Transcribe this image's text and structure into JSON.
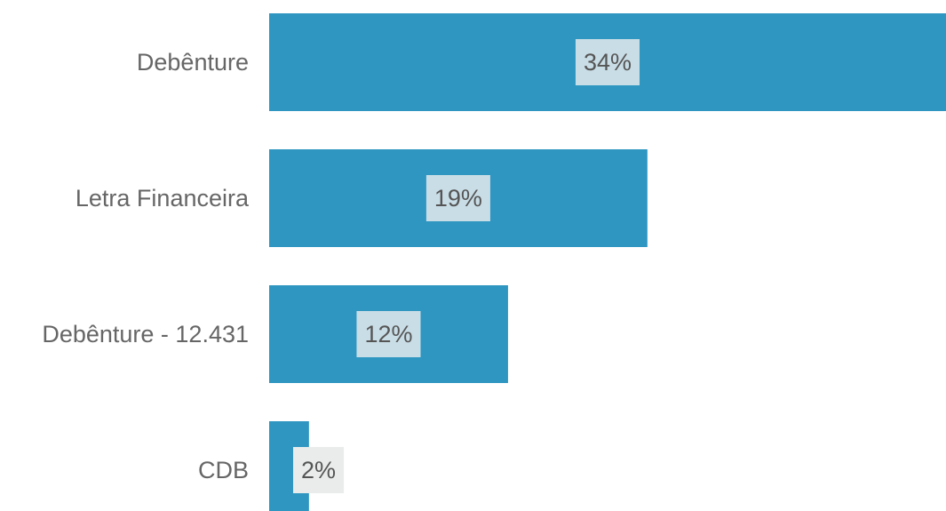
{
  "chart_data": {
    "type": "bar",
    "orientation": "horizontal",
    "categories": [
      "Debênture",
      "Letra Financeira",
      "Debênture - 12.431",
      "CDB"
    ],
    "values": [
      34,
      19,
      12,
      2
    ],
    "value_labels": [
      "34%",
      "19%",
      "12%",
      "2%"
    ],
    "xlim": [
      0,
      34
    ],
    "unit": "%",
    "grid": false,
    "legend": "none",
    "colors": {
      "bar": "#2e96c1",
      "label_box": "#c9dde6",
      "label_box_light": "#e9eceb",
      "category_text": "#666666",
      "value_text": "#555555"
    }
  }
}
